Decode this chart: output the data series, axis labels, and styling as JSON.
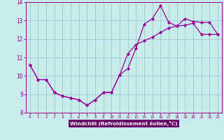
{
  "bg_color": "#c8ecec",
  "axis_label_bg": "#6600aa",
  "line_color": "#990099",
  "grid_color": "#99cccc",
  "xlabel": "Windchill (Refroidissement éolien,°C)",
  "hours": [
    0,
    1,
    2,
    3,
    4,
    5,
    6,
    7,
    8,
    9,
    10,
    11,
    12,
    13,
    14,
    15,
    16,
    17,
    18,
    19,
    20,
    21,
    22,
    23
  ],
  "line1": [
    10.6,
    9.8,
    9.8,
    9.1,
    8.9,
    8.8,
    8.7,
    8.4,
    8.7,
    9.1,
    9.1,
    10.05,
    10.4,
    11.5,
    12.8,
    13.1,
    13.8,
    12.9,
    12.7,
    13.1,
    12.95,
    12.9,
    12.9,
    12.25
  ],
  "line2": [
    10.6,
    9.8,
    9.8,
    9.1,
    8.9,
    8.8,
    8.7,
    8.4,
    8.7,
    9.1,
    9.1,
    10.05,
    11.2,
    11.7,
    11.9,
    12.1,
    12.35,
    12.6,
    12.7,
    12.75,
    12.85,
    12.25,
    12.25,
    12.25
  ],
  "ylim": [
    8.0,
    14.0
  ],
  "xlim_min": -0.5,
  "xlim_max": 23.5,
  "yticks": [
    8,
    9,
    10,
    11,
    12,
    13,
    14
  ],
  "xticks": [
    0,
    1,
    2,
    3,
    4,
    5,
    6,
    7,
    8,
    9,
    10,
    11,
    12,
    13,
    14,
    15,
    16,
    17,
    18,
    19,
    20,
    21,
    22,
    23
  ],
  "ylabel_fontsize": 5.2,
  "xlabel_fontsize": 5.2,
  "ytick_fontsize": 5.5,
  "xtick_fontsize": 4.0,
  "line_width": 0.9,
  "marker_size": 2.2
}
